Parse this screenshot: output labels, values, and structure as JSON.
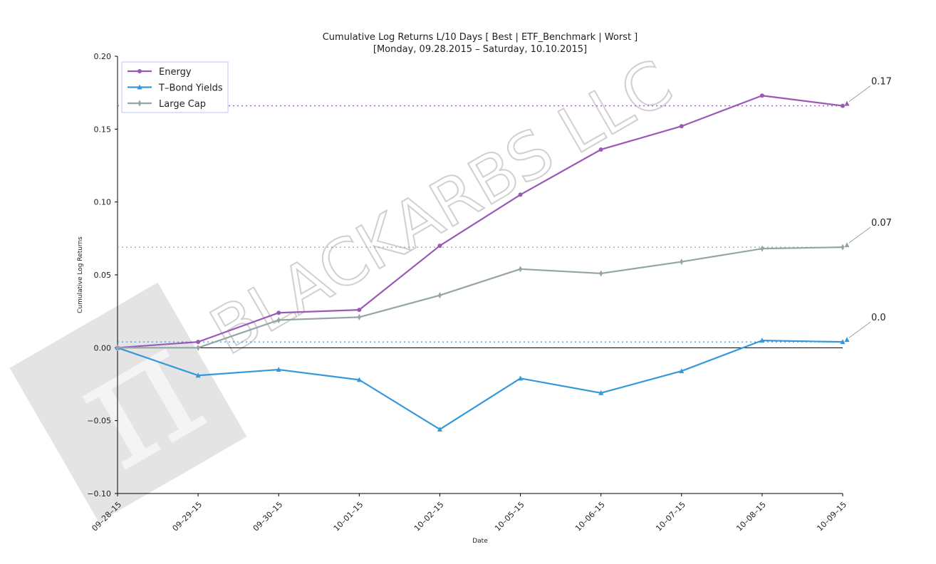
{
  "colors": {
    "energy": "#9b59b6",
    "tbond": "#3498db",
    "largecap": "#95a5a6",
    "axis": "#000000"
  },
  "watermark": "BLACKARBS LLC",
  "chart_data": {
    "type": "line",
    "title": "Cumulative Log Returns L/10 Days [ Best | ETF_Benchmark | Worst ]",
    "subtitle": "[Monday, 09.28.2015 – Saturday, 10.10.2015]",
    "xlabel": "Date",
    "ylabel": "Cumulative Log Returns",
    "categories": [
      "09–28–15",
      "09–29–15",
      "09–30–15",
      "10–01–15",
      "10–02–15",
      "10–05–15",
      "10–06–15",
      "10–07–15",
      "10–08–15",
      "10–09–15"
    ],
    "ylim": [
      -0.1,
      0.2
    ],
    "yticks": [
      -0.1,
      -0.05,
      0.0,
      0.05,
      0.1,
      0.15,
      0.2
    ],
    "ytick_labels": [
      "−0.10",
      "−0.05",
      "0.00",
      "0.05",
      "0.10",
      "0.15",
      "0.20"
    ],
    "grid": false,
    "legend_position": "top-left",
    "series": [
      {
        "name": "Energy",
        "color_key": "energy",
        "marker": "circle",
        "values": [
          0.0,
          0.004,
          0.024,
          0.026,
          0.07,
          0.105,
          0.136,
          0.152,
          0.173,
          0.166
        ],
        "end_label": "0.17"
      },
      {
        "name": "T–Bond Yields",
        "color_key": "tbond",
        "marker": "triangle",
        "values": [
          0.0,
          -0.019,
          -0.015,
          -0.022,
          -0.056,
          -0.021,
          -0.031,
          -0.016,
          0.005,
          0.004
        ],
        "end_label": "0.0"
      },
      {
        "name": "Large Cap",
        "color_key": "largecap",
        "marker": "diamond",
        "values": [
          0.0,
          0.0,
          0.019,
          0.021,
          0.036,
          0.054,
          0.051,
          0.059,
          0.068,
          0.069
        ],
        "end_label": "0.07"
      }
    ]
  }
}
